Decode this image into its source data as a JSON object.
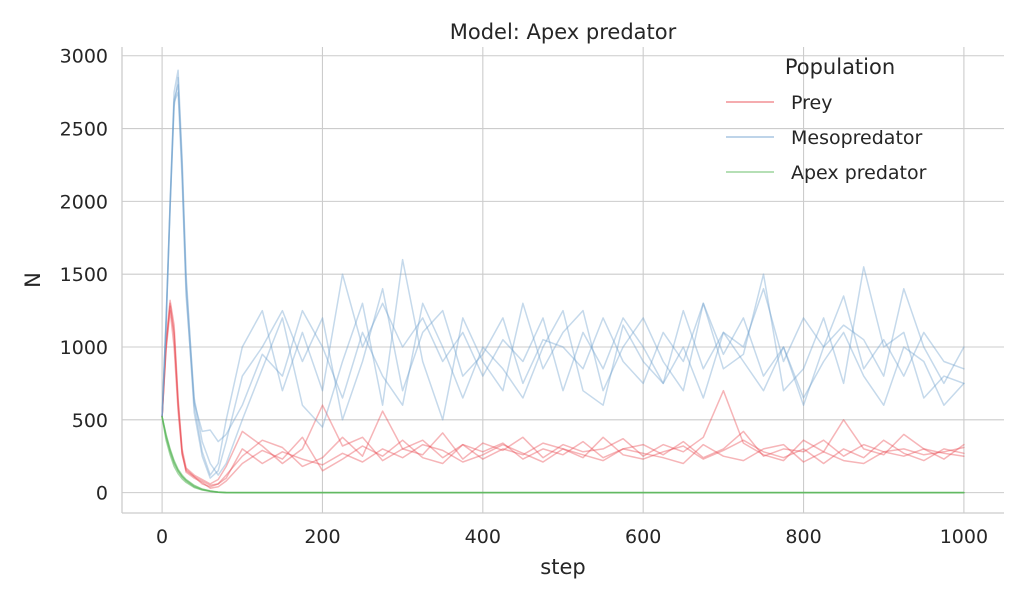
{
  "chart_data": {
    "type": "line",
    "title": "Model: Apex predator",
    "xlabel": "step",
    "ylabel": "N",
    "xlim": [
      -50,
      1050
    ],
    "ylim": [
      -140,
      3060
    ],
    "xticks": [
      0,
      200,
      400,
      600,
      800,
      1000
    ],
    "yticks": [
      0,
      500,
      1000,
      1500,
      2000,
      2500,
      3000
    ],
    "grid": true,
    "legend": {
      "title": "Population",
      "placement": "top-right",
      "entries": [
        "Prey",
        "Mesopredator",
        "Apex predator"
      ]
    },
    "colors": {
      "Prey": "#e8474e",
      "Mesopredator": "#6f9fce",
      "Apex predator": "#5cb85c"
    },
    "x": [
      0,
      5,
      10,
      15,
      20,
      25,
      30,
      40,
      50,
      60,
      70,
      80,
      100,
      125,
      150,
      175,
      200,
      225,
      250,
      275,
      300,
      325,
      350,
      375,
      400,
      425,
      450,
      475,
      500,
      525,
      550,
      575,
      600,
      625,
      650,
      675,
      700,
      725,
      750,
      775,
      800,
      825,
      850,
      875,
      900,
      925,
      950,
      975,
      1000
    ],
    "series": [
      {
        "group": "Prey",
        "values": [
          520,
          1050,
          1320,
          1150,
          650,
          300,
          170,
          120,
          90,
          60,
          90,
          180,
          420,
          320,
          200,
          300,
          600,
          320,
          380,
          220,
          300,
          360,
          240,
          330,
          280,
          340,
          230,
          300,
          260,
          350,
          240,
          300,
          330,
          260,
          350,
          240,
          300,
          420,
          250,
          300,
          280,
          360,
          250,
          330,
          280,
          300,
          260,
          280,
          310
        ]
      },
      {
        "group": "Prey",
        "values": [
          520,
          980,
          1250,
          1000,
          560,
          260,
          150,
          110,
          60,
          40,
          60,
          120,
          250,
          360,
          310,
          180,
          240,
          380,
          250,
          560,
          300,
          260,
          410,
          230,
          340,
          290,
          380,
          240,
          330,
          280,
          300,
          370,
          250,
          330,
          280,
          380,
          700,
          340,
          260,
          220,
          360,
          280,
          500,
          300,
          260,
          400,
          300,
          230,
          330
        ]
      },
      {
        "group": "Prey",
        "values": [
          520,
          1000,
          1300,
          1100,
          620,
          280,
          140,
          100,
          70,
          30,
          40,
          80,
          200,
          290,
          230,
          380,
          150,
          230,
          320,
          250,
          360,
          240,
          200,
          330,
          230,
          300,
          260,
          340,
          300,
          240,
          380,
          260,
          230,
          280,
          320,
          230,
          290,
          360,
          280,
          240,
          300,
          200,
          300,
          240,
          360,
          270,
          220,
          300,
          270
        ]
      },
      {
        "group": "Prey",
        "values": [
          520,
          1020,
          1280,
          1080,
          600,
          270,
          160,
          110,
          80,
          50,
          60,
          100,
          300,
          200,
          280,
          230,
          190,
          270,
          210,
          300,
          240,
          330,
          290,
          210,
          260,
          330,
          270,
          210,
          300,
          260,
          220,
          300,
          270,
          240,
          200,
          330,
          250,
          220,
          300,
          330,
          210,
          280,
          220,
          200,
          280,
          250,
          300,
          270,
          250
        ]
      },
      {
        "group": "Mesopredator",
        "values": [
          520,
          1200,
          2000,
          2750,
          2900,
          2300,
          1500,
          600,
          280,
          120,
          200,
          500,
          1000,
          1250,
          700,
          1100,
          700,
          1500,
          1000,
          1300,
          1000,
          1200,
          900,
          1100,
          800,
          1050,
          900,
          1200,
          700,
          1100,
          850,
          1200,
          1000,
          750,
          1250,
          850,
          1100,
          1000,
          1400,
          900,
          1200,
          1000,
          1150,
          1050,
          800,
          1400,
          1000,
          750,
          1000
        ]
      },
      {
        "group": "Mesopredator",
        "values": [
          520,
          1150,
          1950,
          2650,
          2850,
          2200,
          1400,
          550,
          250,
          100,
          150,
          350,
          800,
          1000,
          1250,
          900,
          1200,
          500,
          900,
          1400,
          700,
          1100,
          1250,
          800,
          950,
          1200,
          750,
          1050,
          1000,
          850,
          1200,
          900,
          750,
          1100,
          900,
          1300,
          950,
          1200,
          800,
          1000,
          600,
          1000,
          1350,
          850,
          1050,
          800,
          1100,
          900,
          850
        ]
      },
      {
        "group": "Mesopredator",
        "values": [
          520,
          1180,
          1980,
          2700,
          2800,
          2250,
          1450,
          650,
          350,
          200,
          120,
          200,
          500,
          850,
          1200,
          600,
          450,
          900,
          1300,
          600,
          1600,
          900,
          500,
          1200,
          900,
          700,
          1300,
          850,
          1100,
          1250,
          700,
          1000,
          1200,
          900,
          700,
          1300,
          850,
          950,
          1500,
          700,
          850,
          1200,
          750,
          1550,
          1000,
          1100,
          650,
          800,
          750
        ]
      },
      {
        "group": "Mesopredator",
        "values": [
          520,
          1160,
          1960,
          2680,
          2750,
          2150,
          1350,
          620,
          420,
          430,
          350,
          400,
          600,
          950,
          800,
          1250,
          1000,
          650,
          1100,
          800,
          600,
          1300,
          1000,
          650,
          1000,
          850,
          650,
          1000,
          1250,
          700,
          600,
          1150,
          900,
          750,
          1000,
          650,
          1100,
          900,
          700,
          1000,
          650,
          900,
          1100,
          800,
          600,
          1000,
          900,
          600,
          750
        ]
      },
      {
        "group": "Apex predator",
        "values": [
          520,
          380,
          280,
          200,
          150,
          110,
          80,
          40,
          20,
          10,
          3,
          0,
          0,
          0,
          0,
          0,
          0,
          0,
          0,
          0,
          0,
          0,
          0,
          0,
          0,
          0,
          0,
          0,
          0,
          0,
          0,
          0,
          0,
          0,
          0,
          0,
          0,
          0,
          0,
          0,
          0,
          0,
          0,
          0,
          0,
          0,
          0,
          0,
          0
        ]
      },
      {
        "group": "Apex predator",
        "values": [
          520,
          400,
          300,
          220,
          160,
          120,
          90,
          50,
          25,
          12,
          4,
          1,
          0,
          0,
          0,
          0,
          0,
          0,
          0,
          0,
          0,
          0,
          0,
          0,
          0,
          0,
          0,
          0,
          0,
          0,
          0,
          0,
          0,
          0,
          0,
          0,
          0,
          0,
          0,
          0,
          0,
          0,
          0,
          0,
          0,
          0,
          0,
          0,
          0
        ]
      },
      {
        "group": "Apex predator",
        "values": [
          520,
          360,
          260,
          180,
          130,
          95,
          70,
          35,
          18,
          8,
          2,
          0,
          0,
          0,
          0,
          0,
          0,
          0,
          0,
          0,
          0,
          0,
          0,
          0,
          0,
          0,
          0,
          0,
          0,
          0,
          0,
          0,
          0,
          0,
          0,
          0,
          0,
          0,
          0,
          0,
          0,
          0,
          0,
          0,
          0,
          0,
          0,
          0,
          0
        ]
      },
      {
        "group": "Apex predator",
        "values": [
          520,
          390,
          290,
          210,
          150,
          110,
          85,
          45,
          22,
          10,
          3,
          0,
          0,
          0,
          0,
          0,
          0,
          0,
          0,
          0,
          0,
          0,
          0,
          0,
          0,
          0,
          0,
          0,
          0,
          0,
          0,
          0,
          0,
          0,
          0,
          0,
          0,
          0,
          0,
          0,
          0,
          0,
          0,
          0,
          0,
          0,
          0,
          0,
          0
        ]
      }
    ]
  }
}
